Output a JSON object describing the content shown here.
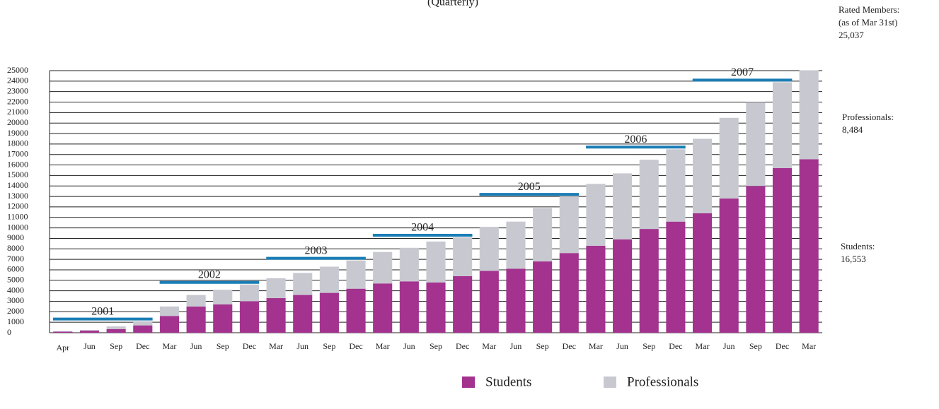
{
  "chart_data": {
    "type": "stacked_bar",
    "title": "(Quarterly)",
    "categories": [
      "Apr",
      "Jun",
      "Sep",
      "Dec",
      "Mar",
      "Jun",
      "Sep",
      "Dec",
      "Mar",
      "Jun",
      "Sep",
      "Dec",
      "Mar",
      "Jun",
      "Sep",
      "Dec",
      "Mar",
      "Jun",
      "Sep",
      "Dec",
      "Mar",
      "Jun",
      "Sep",
      "Dec",
      "Mar",
      "Jun",
      "Sep",
      "Dec",
      "Mar"
    ],
    "series": [
      {
        "name": "Students",
        "color": "#a3338f",
        "values": [
          100,
          200,
          350,
          700,
          1600,
          2500,
          2700,
          3000,
          3300,
          3600,
          3800,
          4200,
          4700,
          4900,
          4800,
          5400,
          5900,
          6100,
          6800,
          7600,
          8300,
          8900,
          9900,
          10600,
          11400,
          12800,
          14000,
          15700,
          16553
        ]
      },
      {
        "name": "Professionals",
        "color": "#c8c9d0",
        "values": [
          50,
          50,
          250,
          400,
          900,
          1100,
          1400,
          1600,
          1900,
          2100,
          2500,
          2700,
          3000,
          3200,
          3900,
          3700,
          4200,
          4500,
          5100,
          5400,
          5900,
          6300,
          6600,
          6900,
          7100,
          7700,
          8000,
          8200,
          8484
        ]
      }
    ],
    "groups": [
      {
        "label": "2001",
        "count": 4
      },
      {
        "label": "2002",
        "count": 4
      },
      {
        "label": "2003",
        "count": 4
      },
      {
        "label": "2004",
        "count": 4
      },
      {
        "label": "2005",
        "count": 4
      },
      {
        "label": "2006",
        "count": 4
      },
      {
        "label": "2007",
        "count": 4
      }
    ],
    "group_color": "#1a7db5",
    "ylim": [
      0,
      25000
    ],
    "yticks": [
      0,
      1000,
      2000,
      3000,
      4000,
      5000,
      6000,
      7000,
      8000,
      9000,
      10000,
      11000,
      12000,
      13000,
      14000,
      15000,
      16000,
      17000,
      18000,
      19000,
      20000,
      21000,
      22000,
      23000,
      24000,
      25000
    ],
    "grid": true,
    "side_notes": [
      {
        "lines": [
          "Rated Members:",
          "(as of Mar 31st)",
          "25,037"
        ]
      },
      {
        "lines": [
          "Professionals:",
          "8,484"
        ]
      },
      {
        "lines": [
          "Students:",
          "16,553"
        ]
      }
    ]
  }
}
